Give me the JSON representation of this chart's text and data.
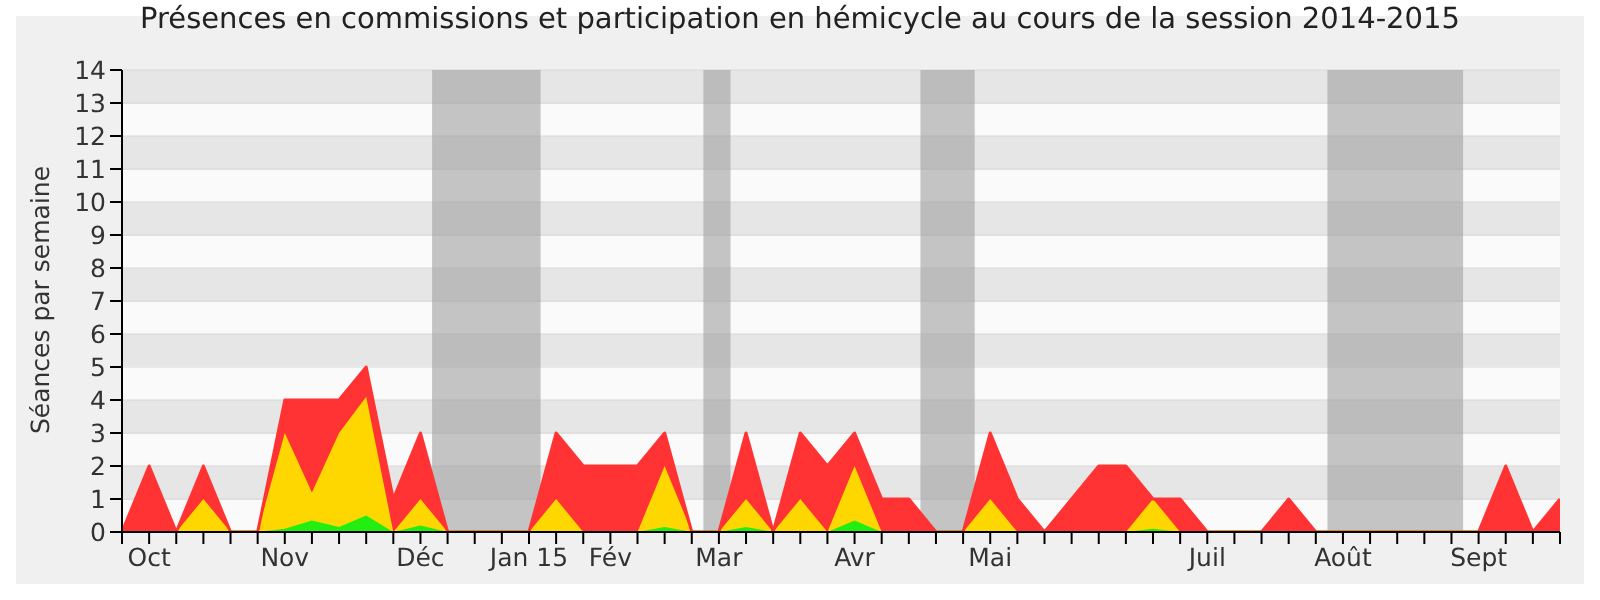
{
  "chart_data": {
    "type": "area",
    "stacked": true,
    "title": "Présences en commissions et participation en hémicycle au cours de la session 2014-2015",
    "ylabel": "Séances par semaine",
    "x": [
      "2014-09-29",
      "2014-10-06",
      "2014-10-13",
      "2014-10-20",
      "2014-10-27",
      "2014-11-03",
      "2014-11-10",
      "2014-11-17",
      "2014-11-24",
      "2014-12-01",
      "2014-12-08",
      "2014-12-15",
      "2014-12-22",
      "2014-12-29",
      "2015-01-05",
      "2015-01-12",
      "2015-01-19",
      "2015-01-26",
      "2015-02-02",
      "2015-02-09",
      "2015-02-16",
      "2015-02-23",
      "2015-03-02",
      "2015-03-09",
      "2015-03-16",
      "2015-03-23",
      "2015-03-30",
      "2015-04-06",
      "2015-04-13",
      "2015-04-20",
      "2015-04-27",
      "2015-05-04",
      "2015-05-11",
      "2015-05-18",
      "2015-05-25",
      "2015-06-01",
      "2015-06-08",
      "2015-06-15",
      "2015-06-22",
      "2015-06-29",
      "2015-07-06",
      "2015-07-13",
      "2015-07-20",
      "2015-07-27",
      "2015-08-03",
      "2015-08-10",
      "2015-08-17",
      "2015-08-24",
      "2015-08-31",
      "2015-09-07",
      "2015-09-14",
      "2015-09-21",
      "2015-09-28",
      "2015-10-05"
    ],
    "series": [
      {
        "color": "#22ee11",
        "values": [
          0,
          0,
          0,
          0,
          0,
          0,
          0.1,
          0.35,
          0.15,
          0.5,
          0,
          0.2,
          0,
          0,
          0,
          0,
          0,
          0,
          0,
          0,
          0.15,
          0,
          0,
          0.15,
          0,
          0,
          0,
          0.35,
          0,
          0,
          0,
          0,
          0,
          0,
          0,
          0,
          0,
          0,
          0.1,
          0,
          0,
          0,
          0,
          0,
          0,
          0,
          0,
          0,
          0,
          0,
          0,
          0,
          0,
          0
        ]
      },
      {
        "color": "#ffd700",
        "values": [
          0,
          0,
          0,
          1,
          0,
          0,
          2.9,
          0.85,
          2.85,
          3.6,
          0,
          0.8,
          0,
          0,
          0,
          0,
          1,
          0,
          0,
          0,
          1.85,
          0,
          0,
          0.85,
          0,
          1,
          0,
          1.65,
          0,
          0,
          0,
          0,
          1,
          0,
          0,
          0,
          0,
          0,
          0.9,
          0,
          0,
          0,
          0,
          0,
          0,
          0,
          0,
          0,
          0,
          0,
          0,
          0,
          0,
          0
        ]
      },
      {
        "color": "#ff3333",
        "values": [
          0,
          2,
          0,
          1,
          0,
          0,
          1,
          2.8,
          1,
          0.9,
          1,
          2,
          0,
          0,
          0,
          0,
          2,
          2,
          2,
          2,
          1,
          0,
          0,
          2,
          0,
          2,
          2,
          1,
          1,
          1,
          0,
          0,
          2,
          1,
          0,
          1,
          2,
          2,
          0,
          1,
          0,
          0,
          0,
          1,
          0,
          0,
          0,
          0,
          0,
          0,
          0,
          2,
          0,
          1
        ]
      }
    ],
    "xlim": [
      "2014-09-29",
      "2015-10-05"
    ],
    "xticks": [
      {
        "value": "2014-09-29",
        "label": null
      },
      {
        "value": "2014-10-06",
        "label": "Oct"
      },
      {
        "value": "2014-10-13",
        "label": null
      },
      {
        "value": "2014-10-20",
        "label": null
      },
      {
        "value": "2014-10-27",
        "label": null
      },
      {
        "value": "2014-11-03",
        "label": null
      },
      {
        "value": "2014-11-10",
        "label": "Nov"
      },
      {
        "value": "2014-11-17",
        "label": null
      },
      {
        "value": "2014-11-24",
        "label": null
      },
      {
        "value": "2014-12-01",
        "label": null
      },
      {
        "value": "2014-12-08",
        "label": null
      },
      {
        "value": "2014-12-15",
        "label": "Déc"
      },
      {
        "value": "2014-12-22",
        "label": null
      },
      {
        "value": "2014-12-29",
        "label": null
      },
      {
        "value": "2015-01-05",
        "label": null
      },
      {
        "value": "2015-01-12",
        "label": "Jan 15"
      },
      {
        "value": "2015-01-19",
        "label": null
      },
      {
        "value": "2015-01-26",
        "label": null
      },
      {
        "value": "2015-02-02",
        "label": "Fév"
      },
      {
        "value": "2015-02-09",
        "label": null
      },
      {
        "value": "2015-02-16",
        "label": null
      },
      {
        "value": "2015-02-23",
        "label": null
      },
      {
        "value": "2015-03-02",
        "label": "Mar"
      },
      {
        "value": "2015-03-09",
        "label": null
      },
      {
        "value": "2015-03-16",
        "label": null
      },
      {
        "value": "2015-03-23",
        "label": null
      },
      {
        "value": "2015-03-30",
        "label": null
      },
      {
        "value": "2015-04-06",
        "label": "Avr"
      },
      {
        "value": "2015-04-13",
        "label": null
      },
      {
        "value": "2015-04-20",
        "label": null
      },
      {
        "value": "2015-04-27",
        "label": null
      },
      {
        "value": "2015-05-04",
        "label": null
      },
      {
        "value": "2015-05-11",
        "label": "Mai"
      },
      {
        "value": "2015-05-18",
        "label": null
      },
      {
        "value": "2015-05-25",
        "label": null
      },
      {
        "value": "2015-06-01",
        "label": null
      },
      {
        "value": "2015-06-08",
        "label": null
      },
      {
        "value": "2015-06-15",
        "label": null
      },
      {
        "value": "2015-06-22",
        "label": null
      },
      {
        "value": "2015-06-29",
        "label": null
      },
      {
        "value": "2015-07-06",
        "label": "Juil"
      },
      {
        "value": "2015-07-13",
        "label": null
      },
      {
        "value": "2015-07-20",
        "label": null
      },
      {
        "value": "2015-07-27",
        "label": null
      },
      {
        "value": "2015-08-03",
        "label": null
      },
      {
        "value": "2015-08-10",
        "label": "Août"
      },
      {
        "value": "2015-08-17",
        "label": null
      },
      {
        "value": "2015-08-24",
        "label": null
      },
      {
        "value": "2015-08-31",
        "label": null
      },
      {
        "value": "2015-09-07",
        "label": null
      },
      {
        "value": "2015-09-14",
        "label": "Sept"
      },
      {
        "value": "2015-09-21",
        "label": null
      },
      {
        "value": "2015-09-28",
        "label": null
      },
      {
        "value": "2015-10-05",
        "label": null
      }
    ],
    "ylim": [
      0,
      14
    ],
    "yticks": [
      0,
      1,
      2,
      3,
      4,
      5,
      6,
      7,
      8,
      9,
      10,
      11,
      12,
      13,
      14
    ],
    "grid": "y",
    "bands": [
      {
        "axis": "x",
        "from": "2014-12-18",
        "to": "2015-01-15",
        "color": "#a0a0a0"
      },
      {
        "axis": "x",
        "from": "2015-02-26",
        "to": "2015-03-05",
        "color": "#a0a0a0"
      },
      {
        "axis": "x",
        "from": "2015-04-23",
        "to": "2015-05-07",
        "color": "#a0a0a0"
      },
      {
        "axis": "x",
        "from": "2015-08-06",
        "to": "2015-09-10",
        "color": "#a0a0a0"
      }
    ]
  }
}
